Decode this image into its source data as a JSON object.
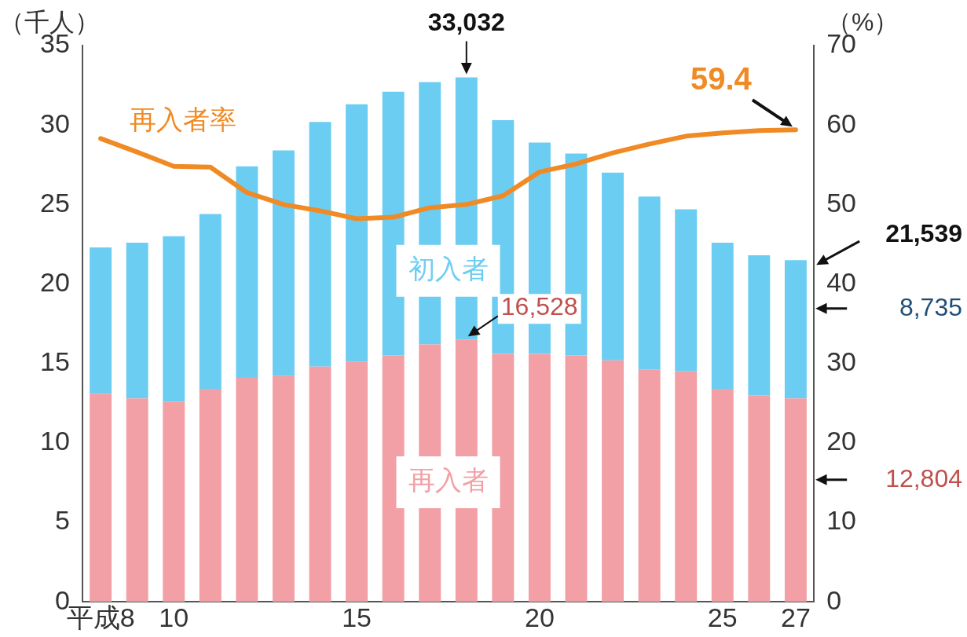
{
  "chart_data": {
    "type": "bar",
    "stacked": true,
    "categories": [
      "平成8",
      null,
      "10",
      null,
      null,
      null,
      null,
      "15",
      null,
      null,
      null,
      null,
      "20",
      null,
      null,
      null,
      null,
      "25",
      null,
      "27"
    ],
    "series": [
      {
        "name": "再入者",
        "color": "#f2a0a6",
        "values": [
          13.1,
          12.8,
          12.6,
          13.4,
          14.1,
          14.2,
          14.8,
          15.1,
          15.5,
          16.2,
          16.5,
          15.6,
          15.6,
          15.5,
          15.2,
          14.6,
          14.5,
          13.4,
          13.0,
          12.8
        ]
      },
      {
        "name": "初入者",
        "color": "#6ccdf3",
        "values": [
          9.2,
          9.8,
          10.4,
          11.0,
          13.3,
          14.2,
          15.4,
          16.2,
          16.6,
          16.5,
          16.5,
          14.7,
          13.3,
          12.7,
          11.8,
          10.9,
          10.2,
          9.2,
          8.8,
          8.7
        ]
      },
      {
        "name": "再入者率",
        "type": "line",
        "axis": "y2",
        "color": "#f08a24",
        "values": [
          58.3,
          56.6,
          54.8,
          54.7,
          51.5,
          50.0,
          49.2,
          48.2,
          48.4,
          49.6,
          50.0,
          51.1,
          54.1,
          55.1,
          56.5,
          57.6,
          58.6,
          59.0,
          59.3,
          59.4
        ],
        "value_labels": [
          null,
          null,
          null,
          null,
          null,
          null,
          null,
          null,
          null,
          null,
          null,
          null,
          null,
          null,
          null,
          null,
          null,
          null,
          null,
          "59.4"
        ]
      }
    ],
    "annotations": [
      {
        "text": "33,032",
        "y": 33.0
      },
      "16,528",
      "21,539",
      "8,735",
      "12,804"
    ],
    "ylabel": "（千人）",
    "y2label": "（%）",
    "ylim": [
      0,
      35
    ],
    "yticks": [
      0,
      5,
      10,
      15,
      20,
      25,
      30,
      35
    ],
    "y2lim": [
      0,
      70
    ],
    "y2ticks": [
      0,
      10,
      20,
      30,
      40,
      50,
      60,
      70
    ],
    "marker": "none",
    "line_style": "solid",
    "grid": false,
    "legend": false
  }
}
